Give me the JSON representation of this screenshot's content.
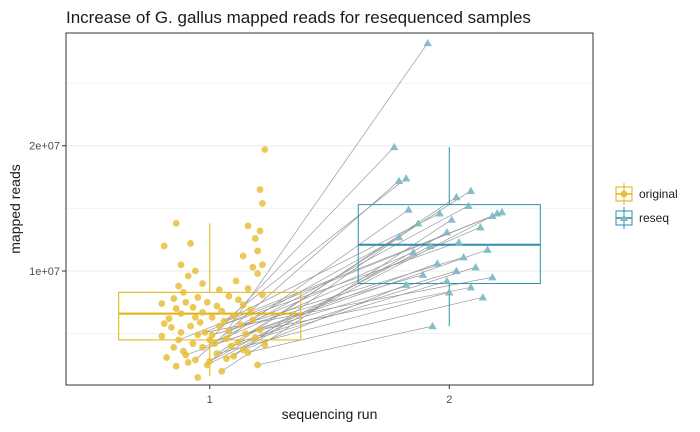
{
  "chart_data": {
    "type": "box",
    "title": "Increase of G. gallus mapped reads for resequenced samples",
    "xlabel": "sequencing run",
    "ylabel": "mapped reads",
    "x_categories": [
      "1",
      "2"
    ],
    "y_ticks": [
      {
        "value": 20000000,
        "label": "2e+07"
      },
      {
        "value": 10000000,
        "label": "1e+07"
      }
    ],
    "ylim": [
      900000,
      29000000
    ],
    "grid": true,
    "legend_position": "right",
    "series": [
      {
        "name": "original",
        "color": "#E1B30C",
        "shape": "circle",
        "box": {
          "q1": 4500000,
          "median": 6600000,
          "q3": 8300000,
          "lower_whisker": 1600000,
          "upper_whisker": 13800000
        },
        "points": [
          [
            0.95,
            1500000
          ],
          [
            1.05,
            2000000
          ],
          [
            0.86,
            2400000
          ],
          [
            0.99,
            2500000
          ],
          [
            1.2,
            2500000
          ],
          [
            0.91,
            2700000
          ],
          [
            1.0,
            2800000
          ],
          [
            0.94,
            2900000
          ],
          [
            1.07,
            3000000
          ],
          [
            0.82,
            3100000
          ],
          [
            1.1,
            3200000
          ],
          [
            0.9,
            3300000
          ],
          [
            1.03,
            3400000
          ],
          [
            1.16,
            3500000
          ],
          [
            0.89,
            3600000
          ],
          [
            1.14,
            3700000
          ],
          [
            0.85,
            3900000
          ],
          [
            0.97,
            3900000
          ],
          [
            1.09,
            4000000
          ],
          [
            1.23,
            4100000
          ],
          [
            0.93,
            4200000
          ],
          [
            1.02,
            4200000
          ],
          [
            1.12,
            4300000
          ],
          [
            0.87,
            4500000
          ],
          [
            1.0,
            4500000
          ],
          [
            1.07,
            4600000
          ],
          [
            1.19,
            4700000
          ],
          [
            0.8,
            4800000
          ],
          [
            0.95,
            4900000
          ],
          [
            1.01,
            4900000
          ],
          [
            1.15,
            5000000
          ],
          [
            0.88,
            5100000
          ],
          [
            0.98,
            5100000
          ],
          [
            1.08,
            5200000
          ],
          [
            1.21,
            5300000
          ],
          [
            0.84,
            5500000
          ],
          [
            0.92,
            5600000
          ],
          [
            1.04,
            5600000
          ],
          [
            1.13,
            5700000
          ],
          [
            0.81,
            5800000
          ],
          [
            0.96,
            5900000
          ],
          [
            1.06,
            6000000
          ],
          [
            1.18,
            6100000
          ],
          [
            0.83,
            6200000
          ],
          [
            0.94,
            6300000
          ],
          [
            1.01,
            6300000
          ],
          [
            1.1,
            6400000
          ],
          [
            0.88,
            6600000
          ],
          [
            0.97,
            6700000
          ],
          [
            1.05,
            6800000
          ],
          [
            1.17,
            6900000
          ],
          [
            0.86,
            7000000
          ],
          [
            0.93,
            7100000
          ],
          [
            1.03,
            7200000
          ],
          [
            1.14,
            7300000
          ],
          [
            0.8,
            7400000
          ],
          [
            0.9,
            7500000
          ],
          [
            0.99,
            7500000
          ],
          [
            1.12,
            7700000
          ],
          [
            0.85,
            7800000
          ],
          [
            0.95,
            7900000
          ],
          [
            1.08,
            8000000
          ],
          [
            1.22,
            8100000
          ],
          [
            0.89,
            8300000
          ],
          [
            1.04,
            8500000
          ],
          [
            1.16,
            8600000
          ],
          [
            0.87,
            8800000
          ],
          [
            0.97,
            9000000
          ],
          [
            1.11,
            9200000
          ],
          [
            0.91,
            9600000
          ],
          [
            1.2,
            9800000
          ],
          [
            0.94,
            10000000
          ],
          [
            1.18,
            10300000
          ],
          [
            0.88,
            10500000
          ],
          [
            1.22,
            10500000
          ],
          [
            1.14,
            11200000
          ],
          [
            1.2,
            11600000
          ],
          [
            0.81,
            12000000
          ],
          [
            0.92,
            12200000
          ],
          [
            1.19,
            12600000
          ],
          [
            1.21,
            13200000
          ],
          [
            1.16,
            13600000
          ],
          [
            0.86,
            13800000
          ],
          [
            1.22,
            15400000
          ],
          [
            1.21,
            16500000
          ],
          [
            1.23,
            19700000
          ]
        ]
      },
      {
        "name": "reseq",
        "color": "#2E8FA8",
        "shape": "triangle",
        "box": {
          "q1": 9000000,
          "median": 12100000,
          "q3": 15300000,
          "lower_whisker": 5600000,
          "upper_whisker": 19900000
        },
        "points": [
          [
            1.93,
            5600000
          ],
          [
            2.14,
            7900000
          ],
          [
            2.0,
            8300000
          ],
          [
            2.09,
            8700000
          ],
          [
            1.82,
            8900000
          ],
          [
            1.99,
            9200000
          ],
          [
            2.18,
            9500000
          ],
          [
            1.89,
            9700000
          ],
          [
            2.03,
            10000000
          ],
          [
            2.11,
            10300000
          ],
          [
            1.95,
            10600000
          ],
          [
            2.06,
            11100000
          ],
          [
            1.85,
            11500000
          ],
          [
            2.16,
            11700000
          ],
          [
            1.92,
            12000000
          ],
          [
            2.04,
            12300000
          ],
          [
            1.79,
            12700000
          ],
          [
            1.99,
            13100000
          ],
          [
            2.13,
            13500000
          ],
          [
            1.87,
            13800000
          ],
          [
            2.01,
            14100000
          ],
          [
            2.18,
            14400000
          ],
          [
            1.96,
            14600000
          ],
          [
            2.2,
            14600000
          ],
          [
            2.22,
            14700000
          ],
          [
            1.83,
            14900000
          ],
          [
            2.08,
            15200000
          ],
          [
            2.03,
            15900000
          ],
          [
            2.09,
            16400000
          ],
          [
            1.79,
            17200000
          ],
          [
            1.82,
            17400000
          ],
          [
            1.77,
            19900000
          ],
          [
            1.91,
            28200000
          ]
        ]
      }
    ],
    "links": [
      [
        [
          1.06,
          4900000
        ],
        [
          1.91,
          28200000
        ]
      ],
      [
        [
          1.0,
          4500000
        ],
        [
          1.77,
          19900000
        ]
      ],
      [
        [
          1.06,
          6000000
        ],
        [
          1.82,
          17400000
        ]
      ],
      [
        [
          0.94,
          2900000
        ],
        [
          1.79,
          17200000
        ]
      ],
      [
        [
          1.03,
          3400000
        ],
        [
          2.09,
          16400000
        ]
      ],
      [
        [
          1.0,
          2800000
        ],
        [
          2.03,
          15900000
        ]
      ],
      [
        [
          1.01,
          4200000
        ],
        [
          2.08,
          15200000
        ]
      ],
      [
        [
          1.07,
          4600000
        ],
        [
          1.83,
          14900000
        ]
      ],
      [
        [
          0.95,
          4900000
        ],
        [
          2.22,
          14700000
        ]
      ],
      [
        [
          0.99,
          2500000
        ],
        [
          2.2,
          14600000
        ]
      ],
      [
        [
          1.06,
          6000000
        ],
        [
          1.96,
          14600000
        ]
      ],
      [
        [
          0.87,
          4500000
        ],
        [
          2.18,
          14400000
        ]
      ],
      [
        [
          1.05,
          2000000
        ],
        [
          2.01,
          14100000
        ]
      ],
      [
        [
          1.1,
          3200000
        ],
        [
          1.87,
          13800000
        ]
      ],
      [
        [
          0.97,
          3900000
        ],
        [
          2.13,
          13500000
        ]
      ],
      [
        [
          1.07,
          3000000
        ],
        [
          1.99,
          13100000
        ]
      ],
      [
        [
          1.08,
          5200000
        ],
        [
          1.79,
          12700000
        ]
      ],
      [
        [
          1.04,
          5600000
        ],
        [
          2.04,
          12300000
        ]
      ],
      [
        [
          1.0,
          2800000
        ],
        [
          1.92,
          12000000
        ]
      ],
      [
        [
          0.9,
          3300000
        ],
        [
          2.16,
          11700000
        ]
      ],
      [
        [
          1.08,
          5200000
        ],
        [
          1.85,
          11500000
        ]
      ],
      [
        [
          1.13,
          5700000
        ],
        [
          2.06,
          11100000
        ]
      ],
      [
        [
          1.15,
          5000000
        ],
        [
          1.95,
          10600000
        ]
      ],
      [
        [
          1.12,
          4300000
        ],
        [
          2.11,
          10300000
        ]
      ],
      [
        [
          1.02,
          4200000
        ],
        [
          2.03,
          10000000
        ]
      ],
      [
        [
          1.01,
          4900000
        ],
        [
          1.89,
          9700000
        ]
      ],
      [
        [
          0.98,
          5100000
        ],
        [
          2.18,
          9500000
        ]
      ],
      [
        [
          1.09,
          4000000
        ],
        [
          1.99,
          9200000
        ]
      ],
      [
        [
          1.14,
          3700000
        ],
        [
          1.82,
          8900000
        ]
      ],
      [
        [
          1.21,
          5300000
        ],
        [
          2.09,
          8700000
        ]
      ],
      [
        [
          1.03,
          3400000
        ],
        [
          2.0,
          8300000
        ]
      ],
      [
        [
          1.16,
          3500000
        ],
        [
          2.14,
          7900000
        ]
      ],
      [
        [
          1.2,
          2500000
        ],
        [
          1.93,
          5600000
        ]
      ]
    ]
  }
}
